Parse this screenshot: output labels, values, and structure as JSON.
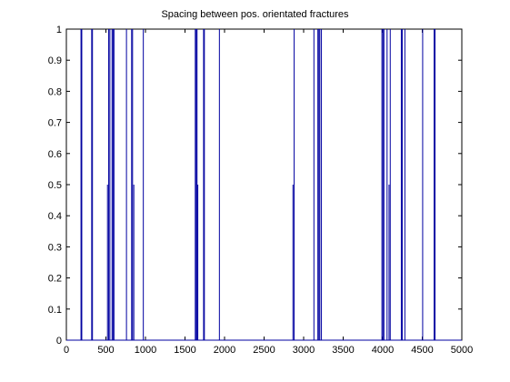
{
  "chart_data": {
    "type": "line",
    "title": "Spacing between pos. orientated fractures",
    "xlabel": "",
    "ylabel": "",
    "xlim": [
      0,
      5000
    ],
    "ylim": [
      0,
      1
    ],
    "grid": false,
    "line_color": "#0000a0",
    "x_ticks": [
      "0",
      "500",
      "1000",
      "1500",
      "2000",
      "2500",
      "3000",
      "3500",
      "4000",
      "4500",
      "5000"
    ],
    "y_ticks": [
      "0",
      "0.1",
      "0.2",
      "0.3",
      "0.4",
      "0.5",
      "0.6",
      "0.7",
      "0.8",
      "0.9",
      "1"
    ],
    "spikes": [
      {
        "x": 185,
        "y": 1
      },
      {
        "x": 195,
        "y": 1
      },
      {
        "x": 320,
        "y": 1
      },
      {
        "x": 330,
        "y": 1
      },
      {
        "x": 520,
        "y": 0.5
      },
      {
        "x": 535,
        "y": 1
      },
      {
        "x": 550,
        "y": 1
      },
      {
        "x": 578,
        "y": 1
      },
      {
        "x": 590,
        "y": 1
      },
      {
        "x": 602,
        "y": 1
      },
      {
        "x": 760,
        "y": 1
      },
      {
        "x": 825,
        "y": 1
      },
      {
        "x": 837,
        "y": 1
      },
      {
        "x": 853,
        "y": 0.5
      },
      {
        "x": 973,
        "y": 1
      },
      {
        "x": 1630,
        "y": 1
      },
      {
        "x": 1642,
        "y": 1
      },
      {
        "x": 1652,
        "y": 1
      },
      {
        "x": 1662,
        "y": 0.5
      },
      {
        "x": 1735,
        "y": 1
      },
      {
        "x": 1745,
        "y": 1
      },
      {
        "x": 1935,
        "y": 1
      },
      {
        "x": 2865,
        "y": 0.5
      },
      {
        "x": 2880,
        "y": 1
      },
      {
        "x": 3130,
        "y": 1
      },
      {
        "x": 3180,
        "y": 1
      },
      {
        "x": 3193,
        "y": 1
      },
      {
        "x": 3205,
        "y": 1
      },
      {
        "x": 3225,
        "y": 1
      },
      {
        "x": 3990,
        "y": 1
      },
      {
        "x": 4003,
        "y": 1
      },
      {
        "x": 4015,
        "y": 1
      },
      {
        "x": 4055,
        "y": 1
      },
      {
        "x": 4080,
        "y": 0.5
      },
      {
        "x": 4095,
        "y": 1
      },
      {
        "x": 4235,
        "y": 1
      },
      {
        "x": 4248,
        "y": 1
      },
      {
        "x": 4280,
        "y": 1
      },
      {
        "x": 4505,
        "y": 1
      },
      {
        "x": 4650,
        "y": 1
      },
      {
        "x": 4662,
        "y": 1
      }
    ]
  }
}
